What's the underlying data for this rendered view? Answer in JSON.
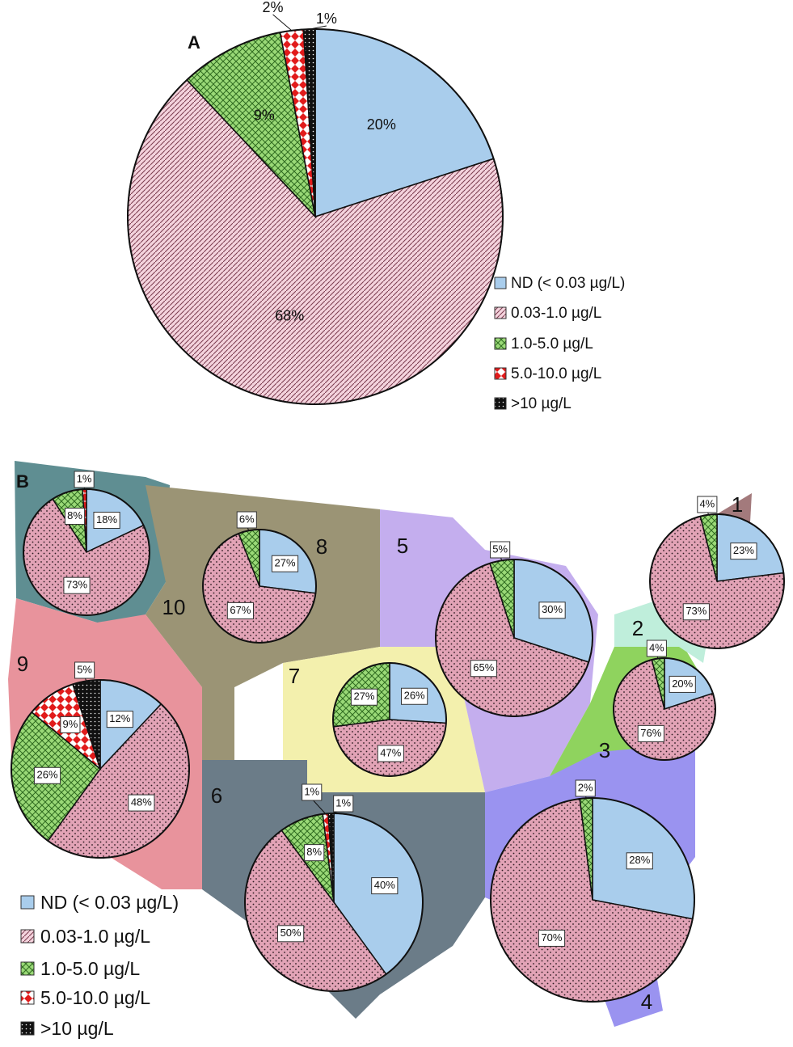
{
  "legend_a": [
    "ND (< 0.03 µg/L)",
    "0.03-1.0 µg/L",
    "1.0-5.0 µg/L",
    "5.0-10.0 µg/L",
    ">10 µg/L"
  ],
  "legend_b": [
    "ND (< 0.03 µg/L)",
    "0.03-1.0 µg/L",
    "1.0-5.0 µg/L",
    "5.0-10.0 µg/L",
    ">10 µg/L"
  ],
  "colors": {
    "nd": "#a9cdec",
    "low": "#e7a7bb",
    "mid": "#8fd36a",
    "high": "#e11b1b",
    "vhigh": "#111111"
  },
  "chart_data": [
    {
      "type": "pie",
      "panel": "A",
      "categories": [
        "ND (< 0.03 µg/L)",
        "0.03-1.0 µg/L",
        "1.0-5.0 µg/L",
        "5.0-10.0 µg/L",
        ">10 µg/L"
      ],
      "values": [
        20,
        68,
        9,
        2,
        1
      ],
      "labels": [
        "20%",
        "68%",
        "9%",
        "2%",
        "1%"
      ]
    },
    {
      "type": "pie",
      "panel": "B",
      "region": "1",
      "categories": [
        "ND (< 0.03 µg/L)",
        "0.03-1.0 µg/L",
        "1.0-5.0 µg/L"
      ],
      "values": [
        23,
        73,
        4
      ],
      "labels": [
        "23%",
        "73%",
        "4%"
      ]
    },
    {
      "type": "pie",
      "panel": "B",
      "region": "2",
      "categories": [
        "ND (< 0.03 µg/L)",
        "0.03-1.0 µg/L",
        "1.0-5.0 µg/L"
      ],
      "values": [
        20,
        76,
        4
      ],
      "labels": [
        "20%",
        "76%",
        "4%"
      ]
    },
    {
      "type": "pie",
      "panel": "B",
      "region": "4",
      "categories": [
        "ND (< 0.03 µg/L)",
        "0.03-1.0 µg/L",
        "1.0-5.0 µg/L"
      ],
      "values": [
        28,
        70,
        2
      ],
      "labels": [
        "28%",
        "70%",
        "2%"
      ]
    },
    {
      "type": "pie",
      "panel": "B",
      "region": "5",
      "categories": [
        "ND (< 0.03 µg/L)",
        "0.03-1.0 µg/L",
        "1.0-5.0 µg/L"
      ],
      "values": [
        30,
        65,
        5
      ],
      "labels": [
        "30%",
        "65%",
        "5%"
      ]
    },
    {
      "type": "pie",
      "panel": "B",
      "region": "6",
      "categories": [
        "ND (< 0.03 µg/L)",
        "0.03-1.0 µg/L",
        "1.0-5.0 µg/L",
        "5.0-10.0 µg/L",
        ">10 µg/L"
      ],
      "values": [
        40,
        50,
        8,
        1,
        1
      ],
      "labels": [
        "40%",
        "50%",
        "8%",
        "1%",
        "1%"
      ]
    },
    {
      "type": "pie",
      "panel": "B",
      "region": "7",
      "categories": [
        "ND (< 0.03 µg/L)",
        "0.03-1.0 µg/L",
        "1.0-5.0 µg/L"
      ],
      "values": [
        26,
        47,
        27
      ],
      "labels": [
        "26%",
        "47%",
        "27%"
      ]
    },
    {
      "type": "pie",
      "panel": "B",
      "region": "8",
      "categories": [
        "ND (< 0.03 µg/L)",
        "0.03-1.0 µg/L",
        "1.0-5.0 µg/L"
      ],
      "values": [
        27,
        67,
        6
      ],
      "labels": [
        "27%",
        "67%",
        "6%"
      ]
    },
    {
      "type": "pie",
      "panel": "B",
      "region": "9",
      "categories": [
        "ND (< 0.03 µg/L)",
        "0.03-1.0 µg/L",
        "1.0-5.0 µg/L",
        "5.0-10.0 µg/L",
        ">10 µg/L"
      ],
      "values": [
        12,
        48,
        26,
        9,
        5
      ],
      "labels": [
        "12%",
        "48%",
        "26%",
        "9%",
        "5%"
      ]
    },
    {
      "type": "pie",
      "panel": "B",
      "region": "10",
      "categories": [
        "ND (< 0.03 µg/L)",
        "0.03-1.0 µg/L",
        "1.0-5.0 µg/L",
        "5.0-10.0 µg/L"
      ],
      "values": [
        18,
        73,
        8,
        1
      ],
      "labels": [
        "18%",
        "73%",
        "8%",
        "1%"
      ]
    }
  ]
}
